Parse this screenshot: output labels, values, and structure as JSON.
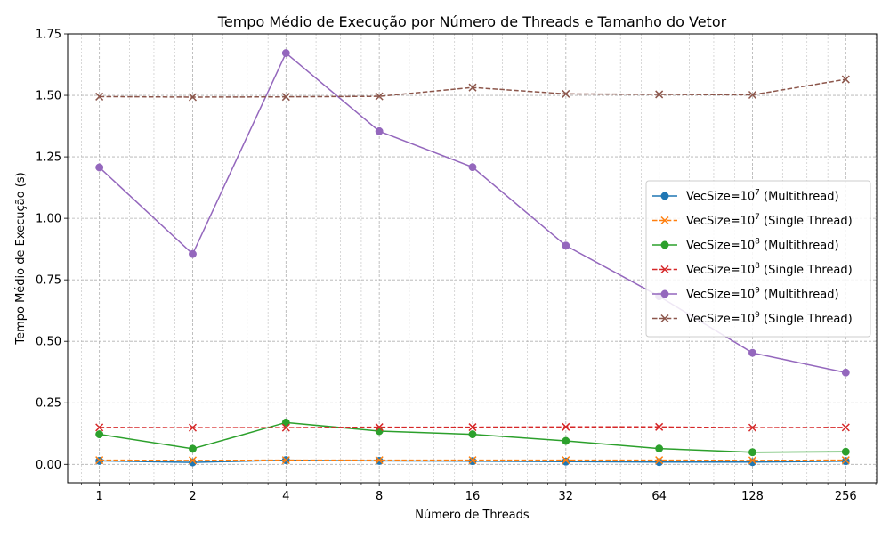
{
  "chart_data": {
    "type": "line",
    "title": "Tempo Médio de Execução por Número de Threads e Tamanho do Vetor",
    "xlabel": "Número de Threads",
    "ylabel": "Tempo Médio de Execução (s)",
    "x_scale": "log2",
    "x": [
      1,
      2,
      4,
      8,
      16,
      32,
      64,
      128,
      256
    ],
    "x_tick_labels": [
      "1",
      "2",
      "4",
      "8",
      "16",
      "32",
      "64",
      "128",
      "256"
    ],
    "xlim": [
      0.79,
      322
    ],
    "ylim": [
      -0.075,
      1.75
    ],
    "y_ticks": [
      0.0,
      0.25,
      0.5,
      0.75,
      1.0,
      1.25,
      1.5,
      1.75
    ],
    "y_tick_labels": [
      "0.00",
      "0.25",
      "0.50",
      "0.75",
      "1.00",
      "1.25",
      "1.50",
      "1.75"
    ],
    "grid": true,
    "legend_position": "center-right",
    "series": [
      {
        "name_prefix": "VecSize=10",
        "name_exp": "7",
        "name_suffix": " (Multithread)",
        "color": "#1f77b4",
        "linestyle": "solid",
        "marker": "circle",
        "values": [
          0.014,
          0.008,
          0.017,
          0.014,
          0.013,
          0.011,
          0.009,
          0.009,
          0.013
        ]
      },
      {
        "name_prefix": "VecSize=10",
        "name_exp": "7",
        "name_suffix": " (Single Thread)",
        "color": "#ff7f0e",
        "linestyle": "dashed",
        "marker": "x",
        "values": [
          0.017,
          0.016,
          0.017,
          0.017,
          0.017,
          0.017,
          0.017,
          0.016,
          0.017
        ]
      },
      {
        "name_prefix": "VecSize=10",
        "name_exp": "8",
        "name_suffix": " (Multithread)",
        "color": "#2ca02c",
        "linestyle": "solid",
        "marker": "circle",
        "values": [
          0.122,
          0.063,
          0.17,
          0.135,
          0.122,
          0.095,
          0.064,
          0.049,
          0.051
        ]
      },
      {
        "name_prefix": "VecSize=10",
        "name_exp": "8",
        "name_suffix": " (Single Thread)",
        "color": "#d62728",
        "linestyle": "dashed",
        "marker": "x",
        "values": [
          0.15,
          0.149,
          0.149,
          0.151,
          0.151,
          0.152,
          0.152,
          0.149,
          0.15
        ]
      },
      {
        "name_prefix": "VecSize=10",
        "name_exp": "9",
        "name_suffix": " (Multithread)",
        "color": "#9467bd",
        "linestyle": "solid",
        "marker": "circle",
        "values": [
          1.207,
          0.855,
          1.672,
          1.354,
          1.208,
          0.889,
          0.683,
          0.453,
          0.373
        ]
      },
      {
        "name_prefix": "VecSize=10",
        "name_exp": "9",
        "name_suffix": " (Single Thread)",
        "color": "#8c564b",
        "linestyle": "dashed",
        "marker": "x",
        "values": [
          1.495,
          1.493,
          1.494,
          1.496,
          1.532,
          1.506,
          1.504,
          1.502,
          1.565
        ]
      }
    ]
  }
}
